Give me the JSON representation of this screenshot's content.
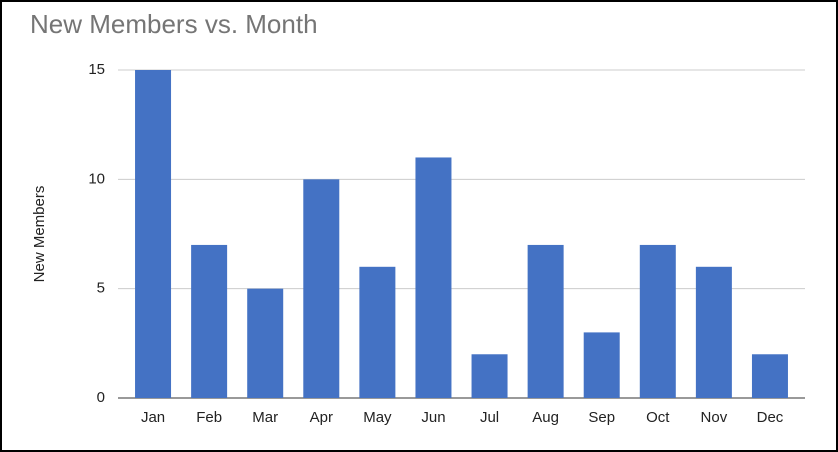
{
  "chart_data": {
    "type": "bar",
    "title": "New Members vs. Month",
    "y_label": "New Members",
    "categories": [
      "Jan",
      "Feb",
      "Mar",
      "Apr",
      "May",
      "Jun",
      "Jul",
      "Aug",
      "Sep",
      "Oct",
      "Nov",
      "Dec"
    ],
    "values": [
      15,
      7,
      5,
      10,
      6,
      11,
      2,
      7,
      3,
      7,
      6,
      2
    ],
    "color": "#4472c4",
    "ylim": [
      0,
      15
    ],
    "yticks": [
      0,
      5,
      10,
      15
    ],
    "grid": true
  }
}
